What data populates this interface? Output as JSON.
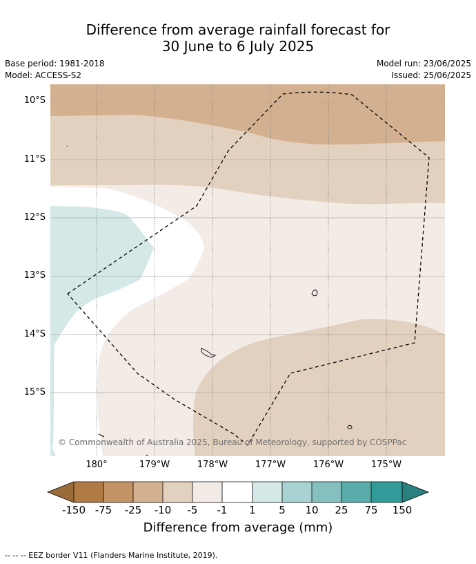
{
  "title_line1": "Difference from average rainfall forecast for",
  "title_line2": "30 June to 6 July 2025",
  "base_period": "Base period: 1981-2018",
  "model": "Model: ACCESS-S2",
  "model_run": "Model run: 23/06/2025",
  "issued": "Issued: 25/06/2025",
  "copyright": "© Commonwealth of Australia 2025, Bureau of Meteorology, supported by COSPPac",
  "lat_labels": [
    "10°S",
    "11°S",
    "12°S",
    "13°S",
    "14°S",
    "15°S"
  ],
  "lon_labels": [
    "180°",
    "179°W",
    "178°W",
    "177°W",
    "176°W",
    "175°W"
  ],
  "colorbar": {
    "ticks": [
      "-150",
      "-75",
      "-25",
      "-10",
      "-5",
      "-1",
      "1",
      "5",
      "10",
      "25",
      "75",
      "150"
    ],
    "colors": [
      "#9c6b3a",
      "#b07a44",
      "#c19365",
      "#d3b190",
      "#e3d1c0",
      "#f3ebe6",
      "#ffffff",
      "#d4e8e7",
      "#a9d2d2",
      "#85bfbf",
      "#5aacab",
      "#329a98",
      "#2a807e"
    ],
    "title": "Difference from average (mm)"
  },
  "footer": "-- -- -- EEZ border V11 (Flanders Marine Institute, 2019)."
}
